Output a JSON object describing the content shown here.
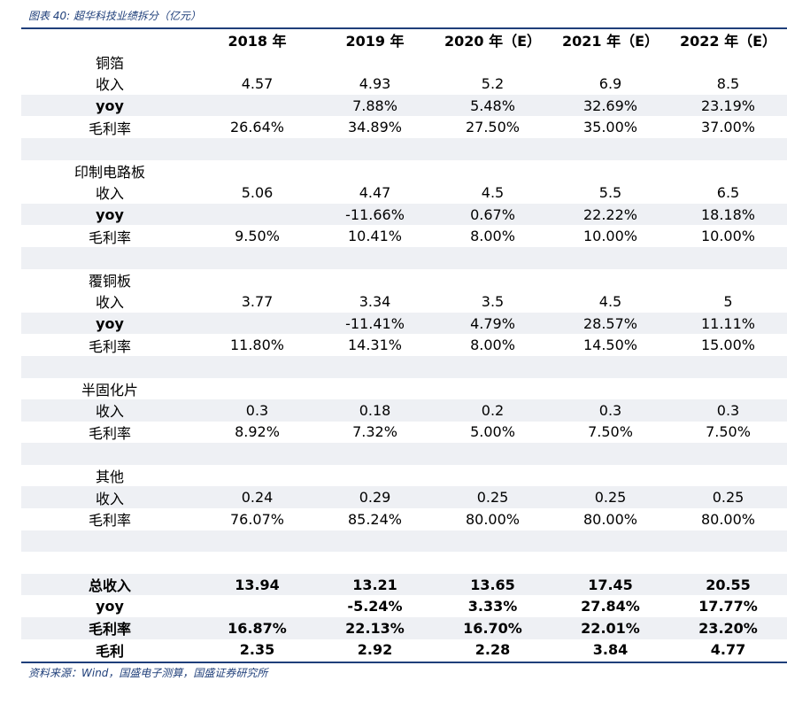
{
  "caption": "图表 40:  超华科技业绩拆分（亿元）",
  "source": "资料来源：Wind，国盛电子测算，国盛证券研究所",
  "headers": [
    "",
    "2018 年",
    "2019 年",
    "2020 年（E）",
    "2021 年（E）",
    "2022 年（E）"
  ],
  "rows": [
    {
      "label": "铜箔",
      "values": [
        "",
        "",
        "",
        "",
        ""
      ],
      "shade": false,
      "bold": false,
      "indent": 0
    },
    {
      "label": "收入",
      "values": [
        "4.57",
        "4.93",
        "5.2",
        "6.9",
        "8.5"
      ],
      "shade": false,
      "bold": false,
      "indent": 1
    },
    {
      "label": "yoy",
      "values": [
        "",
        "7.88%",
        "5.48%",
        "32.69%",
        "23.19%"
      ],
      "shade": true,
      "bold": false,
      "labelBold": true,
      "indent": 1
    },
    {
      "label": "毛利率",
      "values": [
        "26.64%",
        "34.89%",
        "27.50%",
        "35.00%",
        "37.00%"
      ],
      "shade": false,
      "bold": false,
      "indent": 1
    },
    {
      "label": "",
      "values": [
        "",
        "",
        "",
        "",
        ""
      ],
      "shade": true,
      "bold": false,
      "indent": 0
    },
    {
      "label": "印制电路板",
      "values": [
        "",
        "",
        "",
        "",
        ""
      ],
      "shade": false,
      "bold": false,
      "indent": 0
    },
    {
      "label": "收入",
      "values": [
        "5.06",
        "4.47",
        "4.5",
        "5.5",
        "6.5"
      ],
      "shade": false,
      "bold": false,
      "indent": 1
    },
    {
      "label": "yoy",
      "values": [
        "",
        "-11.66%",
        "0.67%",
        "22.22%",
        "18.18%"
      ],
      "shade": true,
      "bold": false,
      "labelBold": true,
      "indent": 1
    },
    {
      "label": "毛利率",
      "values": [
        "9.50%",
        "10.41%",
        "8.00%",
        "10.00%",
        "10.00%"
      ],
      "shade": false,
      "bold": false,
      "indent": 1
    },
    {
      "label": "",
      "values": [
        "",
        "",
        "",
        "",
        ""
      ],
      "shade": true,
      "bold": false,
      "indent": 0
    },
    {
      "label": "覆铜板",
      "values": [
        "",
        "",
        "",
        "",
        ""
      ],
      "shade": false,
      "bold": false,
      "indent": 0
    },
    {
      "label": "收入",
      "values": [
        "3.77",
        "3.34",
        "3.5",
        "4.5",
        "5"
      ],
      "shade": false,
      "bold": false,
      "indent": 1
    },
    {
      "label": "yoy",
      "values": [
        "",
        "-11.41%",
        "4.79%",
        "28.57%",
        "11.11%"
      ],
      "shade": true,
      "bold": false,
      "labelBold": true,
      "indent": 1
    },
    {
      "label": "毛利率",
      "values": [
        "11.80%",
        "14.31%",
        "8.00%",
        "14.50%",
        "15.00%"
      ],
      "shade": false,
      "bold": false,
      "indent": 1
    },
    {
      "label": "",
      "values": [
        "",
        "",
        "",
        "",
        ""
      ],
      "shade": true,
      "bold": false,
      "indent": 0
    },
    {
      "label": "半固化片",
      "values": [
        "",
        "",
        "",
        "",
        ""
      ],
      "shade": false,
      "bold": false,
      "indent": 0
    },
    {
      "label": "收入",
      "values": [
        "0.3",
        "0.18",
        "0.2",
        "0.3",
        "0.3"
      ],
      "shade": true,
      "bold": false,
      "indent": 1
    },
    {
      "label": "毛利率",
      "values": [
        "8.92%",
        "7.32%",
        "5.00%",
        "7.50%",
        "7.50%"
      ],
      "shade": false,
      "bold": false,
      "indent": 1
    },
    {
      "label": "",
      "values": [
        "",
        "",
        "",
        "",
        ""
      ],
      "shade": true,
      "bold": false,
      "indent": 0
    },
    {
      "label": "其他",
      "values": [
        "",
        "",
        "",
        "",
        ""
      ],
      "shade": false,
      "bold": false,
      "indent": 0
    },
    {
      "label": "收入",
      "values": [
        "0.24",
        "0.29",
        "0.25",
        "0.25",
        "0.25"
      ],
      "shade": true,
      "bold": false,
      "indent": 1
    },
    {
      "label": "毛利率",
      "values": [
        "76.07%",
        "85.24%",
        "80.00%",
        "80.00%",
        "80.00%"
      ],
      "shade": false,
      "bold": false,
      "indent": 1
    },
    {
      "label": "",
      "values": [
        "",
        "",
        "",
        "",
        ""
      ],
      "shade": true,
      "bold": false,
      "indent": 0
    },
    {
      "label": "",
      "values": [
        "",
        "",
        "",
        "",
        ""
      ],
      "shade": false,
      "bold": false,
      "indent": 0
    },
    {
      "label": "总收入",
      "values": [
        "13.94",
        "13.21",
        "13.65",
        "17.45",
        "20.55"
      ],
      "shade": true,
      "bold": true,
      "labelBold": false,
      "indent": 0
    },
    {
      "label": "yoy",
      "values": [
        "",
        "-5.24%",
        "3.33%",
        "27.84%",
        "17.77%"
      ],
      "shade": false,
      "bold": true,
      "labelBold": true,
      "indent": 1
    },
    {
      "label": "毛利率",
      "values": [
        "16.87%",
        "22.13%",
        "16.70%",
        "22.01%",
        "23.20%"
      ],
      "shade": true,
      "bold": true,
      "labelBold": false,
      "indent": 1
    },
    {
      "label": "毛利",
      "values": [
        "2.35",
        "2.92",
        "2.28",
        "3.84",
        "4.77"
      ],
      "shade": false,
      "bold": true,
      "labelBold": false,
      "indent": 1
    }
  ]
}
